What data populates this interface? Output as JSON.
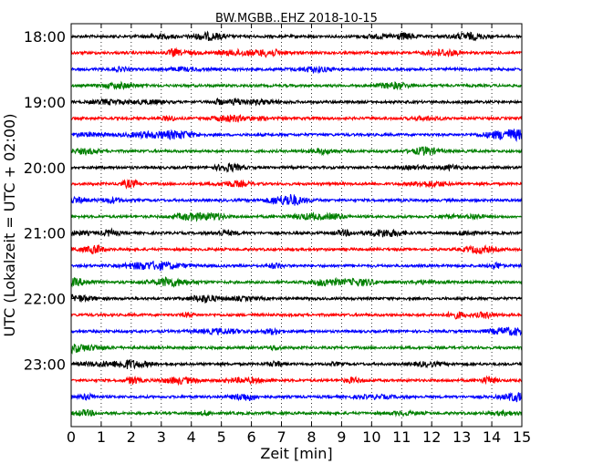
{
  "chart_data": {
    "type": "line",
    "title": "BW.MGBB..EHZ 2018-10-15",
    "xlabel": "Zeit  [min]",
    "ylabel": "UTC (Lokalzeit = UTC + 02:00)",
    "xlim": [
      0,
      15
    ],
    "x_ticks": [
      "0",
      "1",
      "2",
      "3",
      "4",
      "5",
      "6",
      "7",
      "8",
      "9",
      "10",
      "11",
      "12",
      "13",
      "14",
      "15"
    ],
    "y_tick_labels": [
      "18:00",
      "19:00",
      "20:00",
      "21:00",
      "22:00",
      "23:00"
    ],
    "grid": "vertical dotted at each minute",
    "trace_interval_minutes": 15,
    "traces": [
      {
        "start": "18:00",
        "color": "#000000"
      },
      {
        "start": "18:15",
        "color": "#ff0000"
      },
      {
        "start": "18:30",
        "color": "#0000ff"
      },
      {
        "start": "18:45",
        "color": "#008000"
      },
      {
        "start": "19:00",
        "color": "#000000"
      },
      {
        "start": "19:15",
        "color": "#ff0000"
      },
      {
        "start": "19:30",
        "color": "#0000ff"
      },
      {
        "start": "19:45",
        "color": "#008000"
      },
      {
        "start": "20:00",
        "color": "#000000"
      },
      {
        "start": "20:15",
        "color": "#ff0000"
      },
      {
        "start": "20:30",
        "color": "#0000ff"
      },
      {
        "start": "20:45",
        "color": "#008000"
      },
      {
        "start": "21:00",
        "color": "#000000"
      },
      {
        "start": "21:15",
        "color": "#ff0000"
      },
      {
        "start": "21:30",
        "color": "#0000ff"
      },
      {
        "start": "21:45",
        "color": "#008000"
      },
      {
        "start": "22:00",
        "color": "#000000"
      },
      {
        "start": "22:15",
        "color": "#ff0000"
      },
      {
        "start": "22:30",
        "color": "#0000ff"
      },
      {
        "start": "22:45",
        "color": "#008000"
      },
      {
        "start": "23:00",
        "color": "#000000"
      },
      {
        "start": "23:15",
        "color": "#ff0000"
      },
      {
        "start": "23:30",
        "color": "#0000ff"
      },
      {
        "start": "23:45",
        "color": "#008000"
      }
    ]
  }
}
